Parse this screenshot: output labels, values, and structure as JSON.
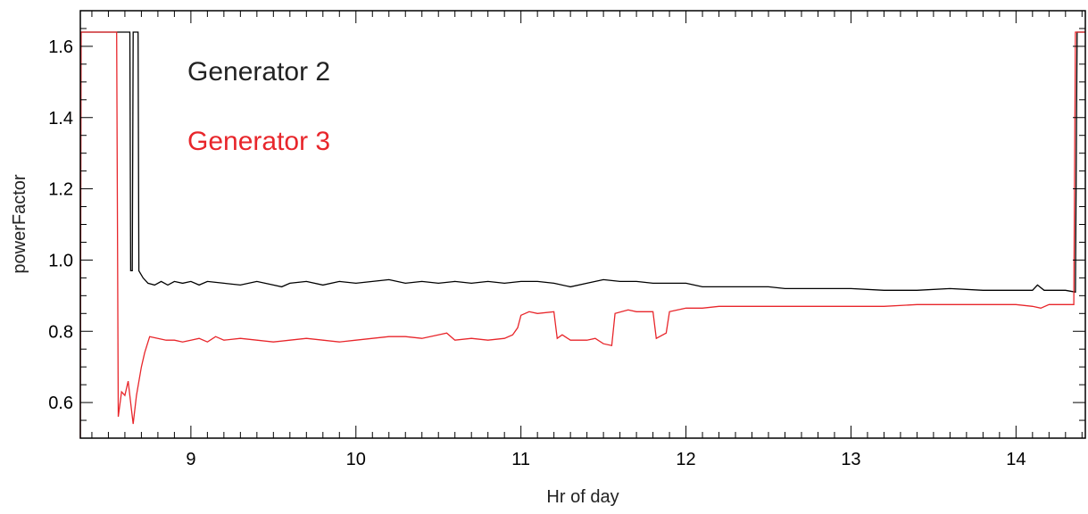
{
  "chart_data": {
    "type": "line",
    "xlabel": "Hr of day",
    "ylabel": "powerFactor",
    "xlim": [
      8.33,
      14.42
    ],
    "ylim": [
      0.5,
      1.7
    ],
    "x_ticks": [
      9,
      10,
      11,
      12,
      13,
      14
    ],
    "y_ticks": [
      0.6,
      0.8,
      1.0,
      1.2,
      1.4,
      1.6
    ],
    "x_tick_labels": [
      "9",
      "10",
      "11",
      "12",
      "13",
      "14"
    ],
    "y_tick_labels": [
      "0.6",
      "0.8",
      "1.0",
      "1.2",
      "1.4",
      "1.6"
    ],
    "grid": false,
    "legend": [
      {
        "label": "Generator 2",
        "color": "#222222"
      },
      {
        "label": "Generator 3",
        "color": "#e8262b"
      }
    ],
    "series": [
      {
        "name": "Generator 2",
        "color": "#000000",
        "points": [
          [
            8.33,
            1.64
          ],
          [
            8.63,
            1.64
          ],
          [
            8.635,
            0.97
          ],
          [
            8.645,
            0.97
          ],
          [
            8.65,
            1.64
          ],
          [
            8.68,
            1.64
          ],
          [
            8.685,
            0.97
          ],
          [
            8.71,
            0.95
          ],
          [
            8.74,
            0.935
          ],
          [
            8.78,
            0.93
          ],
          [
            8.82,
            0.94
          ],
          [
            8.86,
            0.93
          ],
          [
            8.9,
            0.94
          ],
          [
            8.95,
            0.935
          ],
          [
            9.0,
            0.94
          ],
          [
            9.05,
            0.93
          ],
          [
            9.1,
            0.94
          ],
          [
            9.2,
            0.935
          ],
          [
            9.3,
            0.93
          ],
          [
            9.4,
            0.94
          ],
          [
            9.5,
            0.93
          ],
          [
            9.55,
            0.925
          ],
          [
            9.6,
            0.935
          ],
          [
            9.7,
            0.94
          ],
          [
            9.8,
            0.93
          ],
          [
            9.9,
            0.94
          ],
          [
            10.0,
            0.935
          ],
          [
            10.1,
            0.94
          ],
          [
            10.2,
            0.945
          ],
          [
            10.3,
            0.935
          ],
          [
            10.4,
            0.94
          ],
          [
            10.5,
            0.935
          ],
          [
            10.6,
            0.94
          ],
          [
            10.7,
            0.935
          ],
          [
            10.8,
            0.94
          ],
          [
            10.9,
            0.935
          ],
          [
            11.0,
            0.94
          ],
          [
            11.1,
            0.94
          ],
          [
            11.2,
            0.935
          ],
          [
            11.3,
            0.925
          ],
          [
            11.4,
            0.935
          ],
          [
            11.5,
            0.945
          ],
          [
            11.6,
            0.94
          ],
          [
            11.7,
            0.94
          ],
          [
            11.8,
            0.935
          ],
          [
            11.9,
            0.935
          ],
          [
            12.0,
            0.935
          ],
          [
            12.05,
            0.93
          ],
          [
            12.1,
            0.925
          ],
          [
            12.3,
            0.925
          ],
          [
            12.5,
            0.925
          ],
          [
            12.6,
            0.92
          ],
          [
            12.8,
            0.92
          ],
          [
            13.0,
            0.92
          ],
          [
            13.2,
            0.915
          ],
          [
            13.4,
            0.915
          ],
          [
            13.6,
            0.92
          ],
          [
            13.8,
            0.915
          ],
          [
            14.0,
            0.915
          ],
          [
            14.1,
            0.915
          ],
          [
            14.13,
            0.93
          ],
          [
            14.17,
            0.915
          ],
          [
            14.3,
            0.915
          ],
          [
            14.36,
            0.91
          ],
          [
            14.37,
            1.64
          ],
          [
            14.42,
            1.64
          ]
        ]
      },
      {
        "name": "Generator 3",
        "color": "#e8262b",
        "points": [
          [
            8.33,
            0.5
          ],
          [
            8.335,
            1.64
          ],
          [
            8.55,
            1.64
          ],
          [
            8.56,
            0.56
          ],
          [
            8.58,
            0.63
          ],
          [
            8.6,
            0.62
          ],
          [
            8.62,
            0.66
          ],
          [
            8.64,
            0.58
          ],
          [
            8.65,
            0.54
          ],
          [
            8.67,
            0.62
          ],
          [
            8.7,
            0.7
          ],
          [
            8.72,
            0.74
          ],
          [
            8.75,
            0.785
          ],
          [
            8.8,
            0.78
          ],
          [
            8.85,
            0.775
          ],
          [
            8.9,
            0.775
          ],
          [
            8.95,
            0.77
          ],
          [
            9.0,
            0.775
          ],
          [
            9.05,
            0.78
          ],
          [
            9.1,
            0.77
          ],
          [
            9.15,
            0.785
          ],
          [
            9.2,
            0.775
          ],
          [
            9.3,
            0.78
          ],
          [
            9.4,
            0.775
          ],
          [
            9.5,
            0.77
          ],
          [
            9.6,
            0.775
          ],
          [
            9.7,
            0.78
          ],
          [
            9.8,
            0.775
          ],
          [
            9.9,
            0.77
          ],
          [
            10.0,
            0.775
          ],
          [
            10.1,
            0.78
          ],
          [
            10.2,
            0.785
          ],
          [
            10.3,
            0.785
          ],
          [
            10.4,
            0.78
          ],
          [
            10.5,
            0.79
          ],
          [
            10.55,
            0.795
          ],
          [
            10.6,
            0.775
          ],
          [
            10.7,
            0.78
          ],
          [
            10.8,
            0.775
          ],
          [
            10.9,
            0.78
          ],
          [
            10.95,
            0.79
          ],
          [
            10.98,
            0.81
          ],
          [
            11.0,
            0.845
          ],
          [
            11.05,
            0.855
          ],
          [
            11.1,
            0.85
          ],
          [
            11.2,
            0.855
          ],
          [
            11.22,
            0.78
          ],
          [
            11.25,
            0.79
          ],
          [
            11.3,
            0.775
          ],
          [
            11.4,
            0.775
          ],
          [
            11.45,
            0.78
          ],
          [
            11.5,
            0.765
          ],
          [
            11.55,
            0.76
          ],
          [
            11.57,
            0.85
          ],
          [
            11.65,
            0.86
          ],
          [
            11.7,
            0.855
          ],
          [
            11.8,
            0.855
          ],
          [
            11.82,
            0.78
          ],
          [
            11.88,
            0.795
          ],
          [
            11.9,
            0.855
          ],
          [
            11.95,
            0.86
          ],
          [
            12.0,
            0.865
          ],
          [
            12.1,
            0.865
          ],
          [
            12.2,
            0.87
          ],
          [
            12.4,
            0.87
          ],
          [
            12.6,
            0.87
          ],
          [
            12.8,
            0.87
          ],
          [
            13.0,
            0.87
          ],
          [
            13.2,
            0.87
          ],
          [
            13.4,
            0.875
          ],
          [
            13.6,
            0.875
          ],
          [
            13.8,
            0.875
          ],
          [
            14.0,
            0.875
          ],
          [
            14.1,
            0.87
          ],
          [
            14.15,
            0.865
          ],
          [
            14.2,
            0.875
          ],
          [
            14.3,
            0.875
          ],
          [
            14.35,
            0.875
          ],
          [
            14.36,
            1.64
          ],
          [
            14.42,
            1.64
          ]
        ]
      }
    ]
  }
}
